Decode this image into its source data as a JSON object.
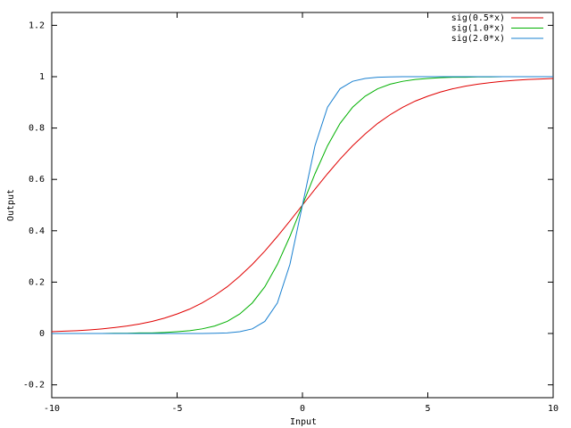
{
  "chart_data": {
    "type": "line",
    "xlabel": "Input",
    "ylabel": "Output",
    "xlim": [
      -10,
      10
    ],
    "ylim": [
      -0.25,
      1.25
    ],
    "xticks": [
      -10,
      -5,
      0,
      5,
      10
    ],
    "yticks": [
      -0.2,
      0,
      0.2,
      0.4,
      0.6,
      0.8,
      1,
      1.2
    ],
    "grid": false,
    "legend": "top-right",
    "x": [
      -10,
      -9.5,
      -9,
      -8.5,
      -8,
      -7.5,
      -7,
      -6.5,
      -6,
      -5.5,
      -5,
      -4.5,
      -4,
      -3.5,
      -3,
      -2.5,
      -2,
      -1.5,
      -1,
      -0.5,
      0,
      0.5,
      1,
      1.5,
      2,
      2.5,
      3,
      3.5,
      4,
      4.5,
      5,
      5.5,
      6,
      6.5,
      7,
      7.5,
      8,
      8.5,
      9,
      9.5,
      10
    ],
    "series": [
      {
        "name": "sig(0.5*x)",
        "color": "#e00000",
        "values": [
          0.007,
          0.009,
          0.011,
          0.014,
          0.018,
          0.023,
          0.029,
          0.037,
          0.047,
          0.06,
          0.076,
          0.095,
          0.119,
          0.148,
          0.182,
          0.223,
          0.269,
          0.321,
          0.378,
          0.438,
          0.5,
          0.562,
          0.622,
          0.679,
          0.731,
          0.777,
          0.818,
          0.852,
          0.881,
          0.905,
          0.924,
          0.94,
          0.953,
          0.963,
          0.971,
          0.977,
          0.982,
          0.986,
          0.989,
          0.991,
          0.993
        ]
      },
      {
        "name": "sig(1.0*x)",
        "color": "#00b000",
        "values": [
          0,
          0,
          0,
          0,
          0,
          0.001,
          0.001,
          0.002,
          0.002,
          0.004,
          0.007,
          0.011,
          0.018,
          0.029,
          0.047,
          0.076,
          0.119,
          0.182,
          0.269,
          0.378,
          0.5,
          0.622,
          0.731,
          0.818,
          0.881,
          0.924,
          0.953,
          0.971,
          0.982,
          0.989,
          0.993,
          0.996,
          0.998,
          0.998,
          0.999,
          0.999,
          1,
          1,
          1,
          1,
          1
        ]
      },
      {
        "name": "sig(2.0*x)",
        "color": "#1a80d0",
        "values": [
          0,
          0,
          0,
          0,
          0,
          0,
          0,
          0,
          0,
          0,
          0,
          0,
          0,
          0.001,
          0.002,
          0.007,
          0.018,
          0.047,
          0.119,
          0.269,
          0.5,
          0.731,
          0.881,
          0.953,
          0.982,
          0.993,
          0.998,
          0.999,
          1,
          1,
          1,
          1,
          1,
          1,
          1,
          1,
          1,
          1,
          1,
          1,
          1
        ]
      }
    ]
  }
}
